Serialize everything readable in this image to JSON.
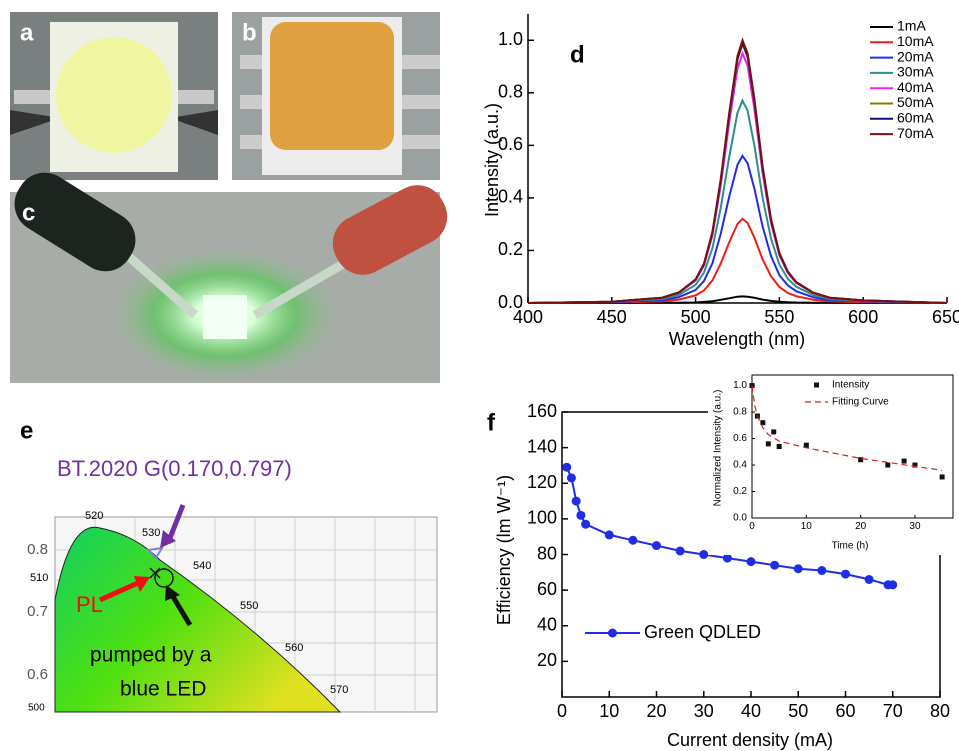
{
  "figure": {
    "panels": [
      "a",
      "b",
      "c",
      "e"
    ],
    "cie": {
      "annotation": "BT.2020 G(0.170,0.797)",
      "pl": "PL",
      "pump": [
        "pumped by a",
        "blue LED"
      ],
      "axis_labels": [
        "0.8",
        "0.7",
        "0.6"
      ],
      "wavelengths": [
        "520",
        "530",
        "510",
        "540",
        "550",
        "560",
        "570",
        "500"
      ]
    }
  },
  "chart_data": [
    {
      "type": "line",
      "panel": "d",
      "xlabel": "Wavelength (nm)",
      "ylabel": "Intensity (a.u.)",
      "xlim": [
        400,
        650
      ],
      "xticks": [
        400,
        450,
        500,
        550,
        600,
        650
      ],
      "ylim": [
        0,
        1.1
      ],
      "yticks": [
        {
          "value": 0,
          "label": "0.0"
        },
        0.2,
        0.4,
        0.6,
        0.8,
        {
          "value": 1,
          "label": "1.0"
        }
      ],
      "legend": "upper right",
      "x": [
        400,
        450,
        480,
        490,
        500,
        505,
        510,
        515,
        520,
        525,
        528,
        531,
        535,
        540,
        545,
        550,
        555,
        560,
        570,
        580,
        600,
        650
      ],
      "series": [
        {
          "name": "1mA",
          "color": "#000000",
          "values": [
            0,
            0,
            0.001,
            0.001,
            0.002,
            0.004,
            0.007,
            0.012,
            0.018,
            0.024,
            0.025,
            0.024,
            0.02,
            0.013,
            0.008,
            0.005,
            0.003,
            0.002,
            0.001,
            0.001,
            0,
            0
          ]
        },
        {
          "name": "10mA",
          "color": "#ee1c1c",
          "values": [
            0,
            0.002,
            0.006,
            0.013,
            0.029,
            0.048,
            0.086,
            0.15,
            0.23,
            0.301,
            0.32,
            0.304,
            0.25,
            0.166,
            0.102,
            0.061,
            0.038,
            0.026,
            0.013,
            0.006,
            0.003,
            0
          ]
        },
        {
          "name": "20mA",
          "color": "#1f2de6",
          "values": [
            0,
            0.003,
            0.011,
            0.022,
            0.05,
            0.084,
            0.151,
            0.263,
            0.403,
            0.526,
            0.56,
            0.532,
            0.437,
            0.291,
            0.179,
            0.106,
            0.067,
            0.045,
            0.022,
            0.011,
            0.006,
            0
          ]
        },
        {
          "name": "30mA",
          "color": "#2a9088",
          "values": [
            0,
            0.004,
            0.015,
            0.031,
            0.069,
            0.116,
            0.208,
            0.362,
            0.554,
            0.724,
            0.77,
            0.732,
            0.601,
            0.4,
            0.246,
            0.146,
            0.092,
            0.062,
            0.031,
            0.015,
            0.008,
            0
          ]
        },
        {
          "name": "40mA",
          "color": "#ee22ee",
          "values": [
            0,
            0.005,
            0.019,
            0.038,
            0.086,
            0.143,
            0.257,
            0.447,
            0.684,
            0.893,
            0.95,
            0.903,
            0.741,
            0.494,
            0.304,
            0.181,
            0.114,
            0.076,
            0.038,
            0.019,
            0.01,
            0
          ]
        },
        {
          "name": "50mA",
          "color": "#808000",
          "values": [
            0,
            0.005,
            0.02,
            0.039,
            0.089,
            0.148,
            0.266,
            0.463,
            0.709,
            0.926,
            0.985,
            0.936,
            0.768,
            0.512,
            0.315,
            0.187,
            0.118,
            0.079,
            0.039,
            0.02,
            0.01,
            0
          ]
        },
        {
          "name": "60mA",
          "color": "#101080",
          "values": [
            0,
            0.005,
            0.02,
            0.04,
            0.089,
            0.149,
            0.267,
            0.465,
            0.713,
            0.931,
            0.99,
            0.941,
            0.772,
            0.515,
            0.317,
            0.188,
            0.119,
            0.079,
            0.04,
            0.02,
            0.01,
            0
          ]
        },
        {
          "name": "70mA",
          "color": "#7a1010",
          "values": [
            0,
            0.005,
            0.02,
            0.04,
            0.09,
            0.15,
            0.27,
            0.47,
            0.72,
            0.94,
            1.0,
            0.95,
            0.78,
            0.52,
            0.32,
            0.19,
            0.12,
            0.08,
            0.04,
            0.02,
            0.01,
            0
          ]
        }
      ]
    },
    {
      "type": "line",
      "panel": "f",
      "xlabel": "Current density (mA)",
      "ylabel": "Efficiency (lm W⁻¹)",
      "xlim": [
        0,
        80
      ],
      "xticks": [
        0,
        10,
        20,
        30,
        40,
        50,
        60,
        70,
        80
      ],
      "ylim": [
        0,
        160
      ],
      "yticks": [
        20,
        40,
        60,
        80,
        100,
        120,
        140,
        160
      ],
      "legend": "lower left",
      "x": [
        1,
        2,
        3,
        4,
        5,
        10,
        15,
        20,
        25,
        30,
        35,
        40,
        45,
        50,
        55,
        60,
        65,
        69,
        70
      ],
      "series": [
        {
          "name": "Green QDLED",
          "color": "#1f2de6",
          "marker": "circle",
          "line": "solid",
          "values": [
            129,
            123,
            110,
            102,
            97,
            91,
            88,
            85,
            82,
            80,
            78,
            76,
            74,
            72,
            71,
            69,
            66,
            63,
            63
          ]
        }
      ]
    },
    {
      "type": "line",
      "xlabel": "Time (h)",
      "ylabel": "Normalized Intensity (a.u.)",
      "xlim": [
        0,
        37
      ],
      "xticks": [
        0,
        10,
        20,
        30
      ],
      "ylim": [
        0,
        1.08
      ],
      "yticks": [
        {
          "value": 0,
          "label": "0.0"
        },
        0.2,
        0.4,
        0.6,
        0.8,
        {
          "value": 1,
          "label": "1.0"
        }
      ],
      "legend": "upper right",
      "series": [
        {
          "name": "Intensity",
          "color": "#111111",
          "marker": "square",
          "line": "none",
          "x": [
            0,
            1,
            2,
            3,
            4,
            5,
            10,
            20,
            25,
            28,
            30,
            35
          ],
          "values": [
            1.0,
            0.77,
            0.72,
            0.56,
            0.65,
            0.54,
            0.55,
            0.44,
            0.4,
            0.43,
            0.4,
            0.31
          ]
        },
        {
          "name": "Fitting Curve",
          "color": "#d42020",
          "line": "dashed",
          "x": [
            0,
            0.5,
            1,
            2,
            3,
            5,
            8,
            10,
            15,
            20,
            25,
            30,
            35
          ],
          "values": [
            1.0,
            0.85,
            0.77,
            0.68,
            0.63,
            0.58,
            0.55,
            0.53,
            0.49,
            0.45,
            0.42,
            0.39,
            0.36
          ]
        }
      ]
    }
  ]
}
